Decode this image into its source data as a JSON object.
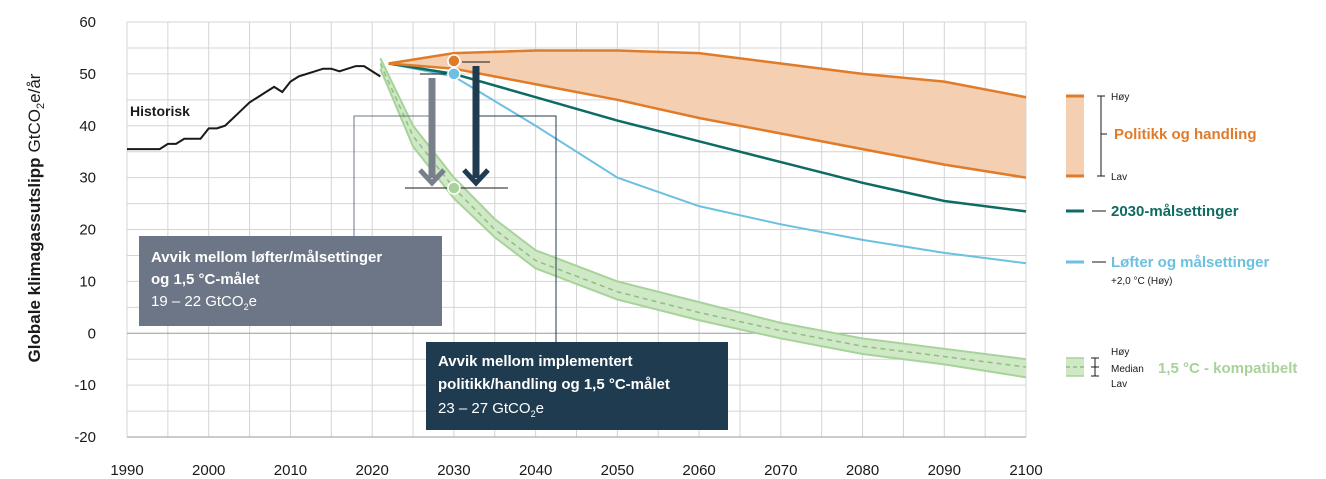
{
  "chart_data": {
    "type": "line",
    "ylabel_bold": "Globale klimagassutslipp",
    "ylabel_unit": "GtCO",
    "ylabel_sub": "2",
    "ylabel_unit_tail": "e/år",
    "xlim": [
      1990,
      2100
    ],
    "ylim": [
      -20,
      60
    ],
    "x_ticks": [
      1990,
      2000,
      2010,
      2020,
      2030,
      2040,
      2050,
      2060,
      2070,
      2080,
      2090,
      2100
    ],
    "y_ticks": [
      60,
      50,
      40,
      30,
      20,
      10,
      0,
      -10,
      -20
    ],
    "grid": true,
    "colors": {
      "historical": "#1a1a1a",
      "policy": "#e07b2a",
      "policy_fill": "#f5cfb1",
      "targets_2030": "#0e6b63",
      "pledges": "#6cc0e0",
      "compatible": "#a7d39a",
      "compatible_fill": "#cfe8c5",
      "box_gray": "#6d7687",
      "box_dark": "#1f3b50"
    },
    "series": {
      "historical": {
        "label": "Historisk",
        "x": [
          1990,
          1991,
          1992,
          1993,
          1994,
          1995,
          1996,
          1997,
          1998,
          1999,
          2000,
          2001,
          2002,
          2003,
          2004,
          2005,
          2006,
          2007,
          2008,
          2009,
          2010,
          2011,
          2012,
          2013,
          2014,
          2015,
          2016,
          2017,
          2018,
          2019,
          2020,
          2021
        ],
        "y": [
          35.5,
          35.5,
          35.5,
          35.5,
          35.5,
          36.5,
          36.5,
          37.5,
          37.5,
          37.5,
          39.5,
          39.5,
          40,
          41.5,
          43,
          44.5,
          45.5,
          46.5,
          47.5,
          46.5,
          48.5,
          49.5,
          50,
          50.5,
          51,
          51,
          50.5,
          51,
          51.5,
          51.5,
          50.5,
          49.5
        ]
      },
      "policy": {
        "label": "Politikk og handling",
        "high_label": "Høy",
        "low_label": "Lav",
        "x": [
          2022,
          2030,
          2040,
          2050,
          2060,
          2070,
          2080,
          2090,
          2100
        ],
        "high": [
          52,
          54,
          54.5,
          54.5,
          54,
          52,
          50,
          48.5,
          45.5
        ],
        "low": [
          52,
          51,
          48,
          45,
          41.5,
          38.5,
          35.5,
          32.5,
          30
        ]
      },
      "targets_2030": {
        "label": "2030-målsettinger",
        "x": [
          2022,
          2030,
          2040,
          2050,
          2060,
          2070,
          2080,
          2090,
          2100
        ],
        "y": [
          52,
          50,
          45.5,
          41,
          37,
          33,
          29,
          25.5,
          23.5
        ]
      },
      "pledges": {
        "label": "Løfter og målsettinger",
        "sub": "+2,0 °C (Høy)",
        "x": [
          2022,
          2030,
          2040,
          2050,
          2060,
          2070,
          2080,
          2090,
          2100
        ],
        "y": [
          52,
          49.5,
          40,
          30,
          24.5,
          21,
          18,
          15.5,
          13.5
        ]
      },
      "compatible": {
        "label": "1,5 °C - kompatibelt",
        "high_label": "Høy",
        "median_label": "Median",
        "low_label": "Lav",
        "x": [
          2021,
          2025,
          2030,
          2035,
          2040,
          2050,
          2060,
          2070,
          2080,
          2090,
          2100
        ],
        "high": [
          53,
          40,
          30,
          22,
          16,
          10,
          6,
          2,
          -1,
          -3,
          -5
        ],
        "median": [
          52,
          38,
          28,
          20,
          14,
          8,
          4,
          0.5,
          -2.5,
          -4.5,
          -6.5
        ],
        "low": [
          51,
          36,
          26,
          18.5,
          12.5,
          6.5,
          2.5,
          -1,
          -4,
          -6,
          -8.5
        ]
      }
    },
    "annotations": {
      "box1": {
        "line1": "Avvik mellom løfter/målsettinger",
        "line2": "og 1,5 °C-målet",
        "range_text": "19 – 22 GtCO",
        "range_sub": "2",
        "range_tail": "e"
      },
      "box2": {
        "line1": "Avvik mellom implementert",
        "line2": "politikk/handling og 1,5 °C-målet",
        "range_text": "23 – 27 GtCO",
        "range_sub": "2",
        "range_tail": "e"
      }
    }
  }
}
